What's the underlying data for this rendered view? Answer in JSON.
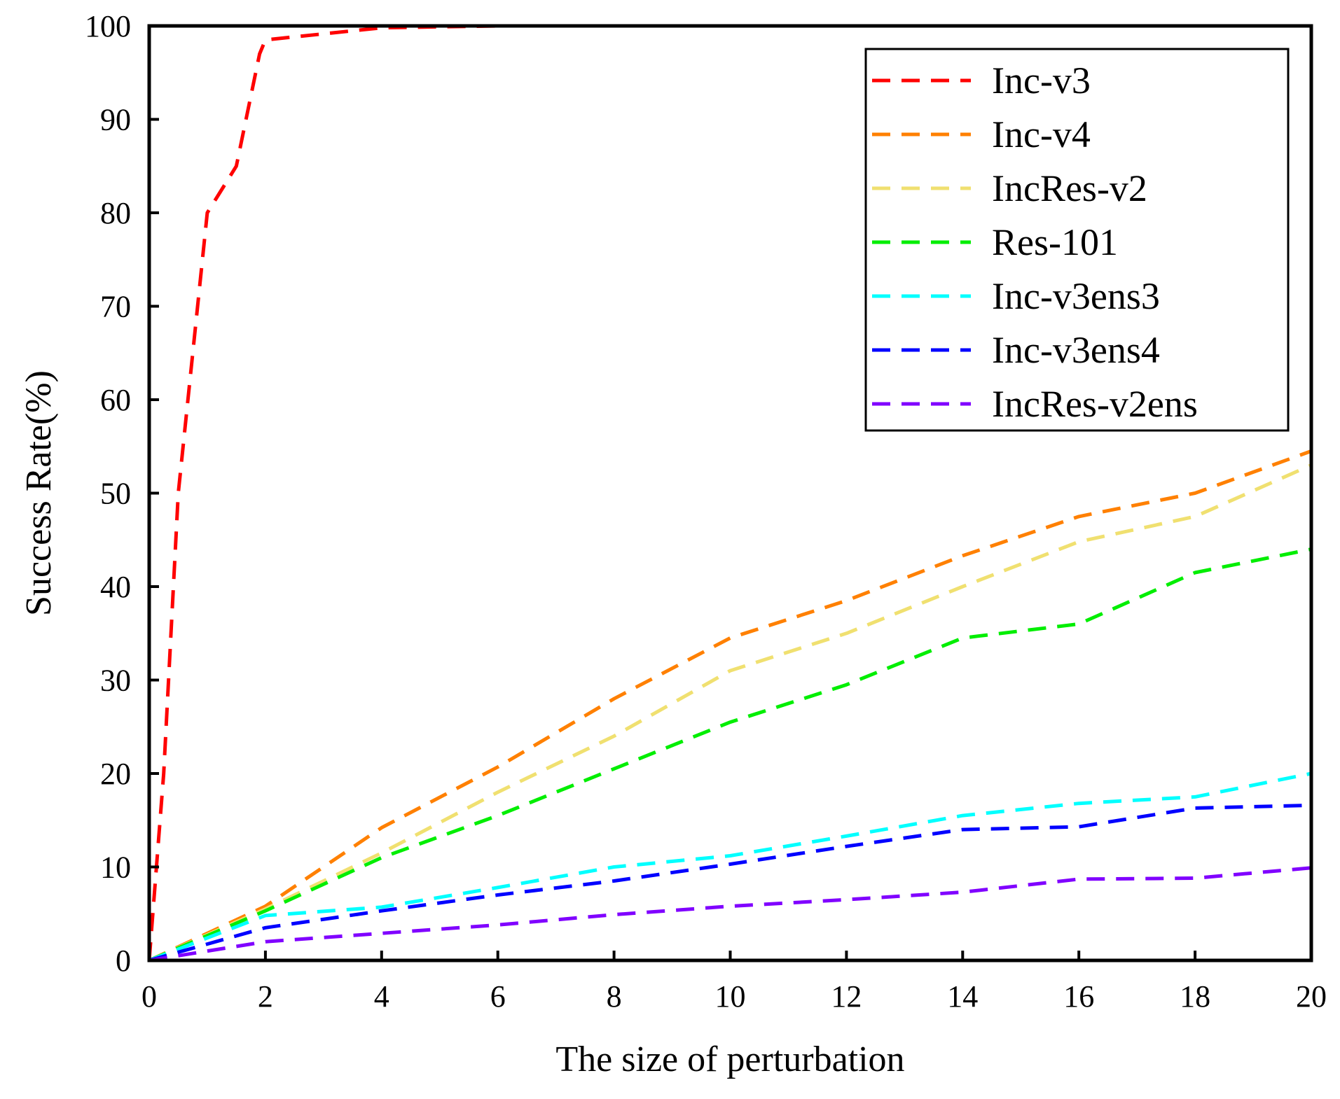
{
  "chart_data": {
    "type": "line",
    "title": "",
    "xlabel": "The size of perturbation",
    "ylabel": "Success Rate(%)",
    "xlim": [
      0,
      20
    ],
    "ylim": [
      0,
      100
    ],
    "xticks": [
      0,
      2,
      4,
      6,
      8,
      10,
      12,
      14,
      16,
      18,
      20
    ],
    "yticks": [
      0,
      10,
      20,
      30,
      40,
      50,
      60,
      70,
      80,
      90,
      100
    ],
    "grid": false,
    "legend_position": "top-right",
    "line_style": "dashed",
    "x": [
      0,
      2,
      4,
      6,
      8,
      10,
      12,
      14,
      16,
      18,
      20
    ],
    "series": [
      {
        "name": "Inc-v3",
        "color": "#ff0000",
        "values": [
          0,
          98.5,
          99.8,
          100,
          100,
          100,
          100,
          100,
          100,
          100,
          100
        ]
      },
      {
        "name": "Inc-v4",
        "color": "#ff8000",
        "values": [
          0,
          5.8,
          14.2,
          20.7,
          28.0,
          34.5,
          38.5,
          43.3,
          47.5,
          50.0,
          54.5
        ]
      },
      {
        "name": "IncRes-v2",
        "color": "#f0e070",
        "values": [
          0,
          5.5,
          11.5,
          18.0,
          24.0,
          31.0,
          35.0,
          40.0,
          44.8,
          47.5,
          53.0
        ]
      },
      {
        "name": "Res-101",
        "color": "#00ee00",
        "values": [
          0,
          5.3,
          11.0,
          15.5,
          20.5,
          25.5,
          29.5,
          34.5,
          36.0,
          41.5,
          44.0
        ]
      },
      {
        "name": "Inc-v3ens3",
        "color": "#00ffff",
        "values": [
          0,
          4.8,
          5.7,
          7.8,
          10.0,
          11.2,
          13.3,
          15.5,
          16.8,
          17.5,
          20.0
        ]
      },
      {
        "name": "Inc-v3ens4",
        "color": "#0000ff",
        "values": [
          0,
          3.5,
          5.3,
          7.0,
          8.5,
          10.3,
          12.2,
          14.0,
          14.3,
          16.3,
          16.6
        ]
      },
      {
        "name": "IncRes-v2ens",
        "color": "#8000ff",
        "values": [
          0,
          2.0,
          2.9,
          3.8,
          4.9,
          5.8,
          6.5,
          7.3,
          8.7,
          8.8,
          9.9
        ]
      }
    ],
    "extra_points": {
      "Inc-v3": {
        "x": [
          0.25,
          0.5,
          1,
          1.5,
          1.9,
          2,
          4,
          6
        ],
        "values": [
          20,
          50,
          80,
          85,
          97,
          98.5,
          99.8,
          100
        ]
      }
    }
  }
}
